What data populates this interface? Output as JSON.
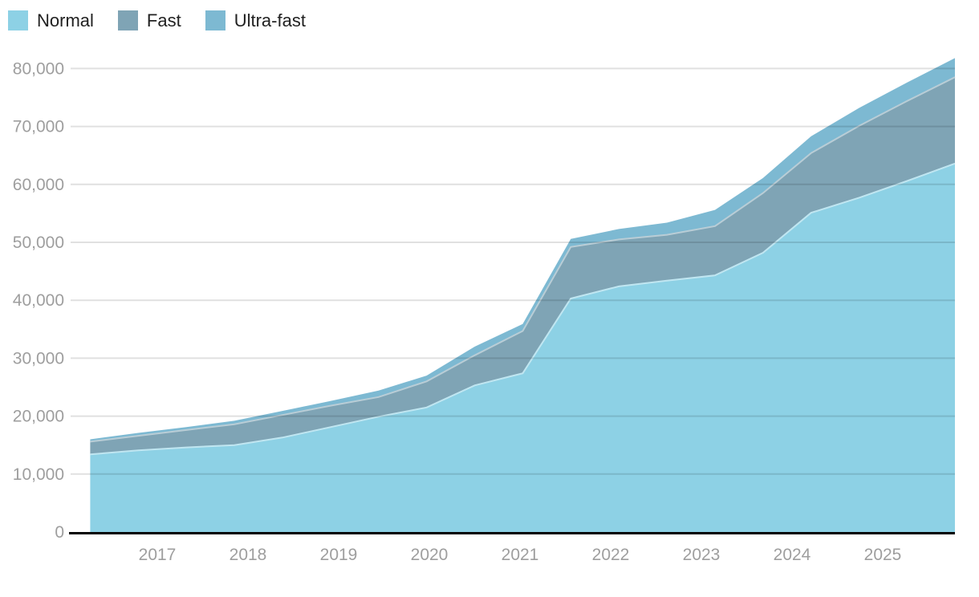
{
  "legend": {
    "items": [
      {
        "label": "Normal",
        "color": "#8dd1e5"
      },
      {
        "label": "Fast",
        "color": "#7fa4b5"
      },
      {
        "label": "Ultra-fast",
        "color": "#7db9d2"
      }
    ]
  },
  "chart_data": {
    "type": "area",
    "stacked": true,
    "title": "",
    "xlabel": "",
    "ylabel": "",
    "x": [
      2016.26,
      2016.79,
      2017.32,
      2017.85,
      2018.38,
      2018.91,
      2019.44,
      2019.97,
      2020.5,
      2021.03,
      2021.56,
      2022.09,
      2022.62,
      2023.15,
      2023.68,
      2024.21,
      2024.74,
      2025.27,
      2025.8
    ],
    "series": [
      {
        "name": "Normal",
        "color": "#8dd1e5",
        "values": [
          13400,
          14100,
          14600,
          15000,
          16300,
          18100,
          19900,
          21500,
          25300,
          27400,
          40300,
          42400,
          43400,
          44300,
          48200,
          55100,
          57700,
          60600,
          63600
        ]
      },
      {
        "name": "Fast",
        "color": "#7fa4b5",
        "values": [
          2200,
          2500,
          3000,
          3600,
          3900,
          3700,
          3400,
          4500,
          5200,
          7300,
          8900,
          8100,
          7900,
          8500,
          10300,
          10300,
          12400,
          13800,
          14900
        ]
      },
      {
        "name": "Ultra-fast",
        "color": "#7db9d2",
        "values": [
          400,
          500,
          500,
          600,
          700,
          800,
          1100,
          1000,
          1500,
          1200,
          1400,
          1800,
          2100,
          2800,
          2600,
          2900,
          3100,
          3200,
          3300
        ]
      }
    ],
    "stacked_totals": [
      16000,
      17100,
      18100,
      19200,
      20900,
      22600,
      24400,
      27000,
      32000,
      35900,
      50600,
      52300,
      53400,
      55600,
      61100,
      68300,
      73200,
      77600,
      81800
    ],
    "x_tick_labels": [
      "2017",
      "2018",
      "2019",
      "2020",
      "2021",
      "2022",
      "2023",
      "2024",
      "2025"
    ],
    "x_tick_values": [
      2017,
      2018,
      2019,
      2020,
      2021,
      2022,
      2023,
      2024,
      2025
    ],
    "y_tick_labels": [
      "0",
      "10,000",
      "20,000",
      "30,000",
      "40,000",
      "50,000",
      "60,000",
      "70,000",
      "80,000"
    ],
    "y_tick_values": [
      0,
      10000,
      20000,
      30000,
      40000,
      50000,
      60000,
      70000,
      80000
    ],
    "ylim": [
      0,
      80000
    ],
    "xlim": [
      2016.03,
      2025.8
    ],
    "grid": true,
    "legend_position": "top-left"
  },
  "colors": {
    "background": "#ffffff",
    "gridline": "#e6e6e6",
    "axis_line": "#000000",
    "axis_label": "#9e9e9e",
    "legend_label": "#212121"
  }
}
